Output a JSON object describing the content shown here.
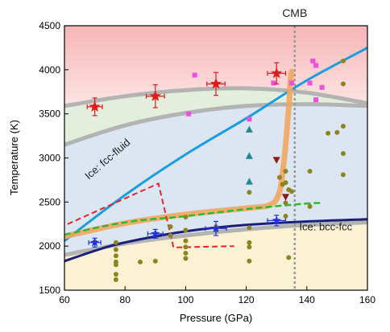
{
  "chart_data": {
    "type": "scatter",
    "xlabel": "Pressure (GPa)",
    "ylabel": "Temperature (K)",
    "xlim": [
      60,
      160
    ],
    "ylim": [
      1500,
      4500
    ],
    "xticks": [
      60,
      80,
      100,
      120,
      140,
      160
    ],
    "yticks": [
      1500,
      2000,
      2500,
      3000,
      3500,
      4000,
      4500
    ],
    "grid": false,
    "annotations": {
      "cmb": {
        "text": "CMB",
        "x": 136
      },
      "fcc_fluid": {
        "text": "Ice: fcc-fluid",
        "x": 68,
        "y": 2750
      },
      "bcc_fcc": {
        "text": "Ice: bcc-fcc",
        "x": 137.5,
        "y": 2180
      }
    },
    "bands": [
      {
        "name": "fluid",
        "color": "#f7b5b5",
        "top_color": "#f7b5b5",
        "bottom_color": "#fce4e4"
      },
      {
        "name": "green",
        "color": "#e3eedd"
      },
      {
        "name": "blue",
        "color": "#dce6f3"
      },
      {
        "name": "yellow",
        "color": "#fbf1d3"
      }
    ],
    "boundaries": [
      {
        "name": "upper-gray",
        "color": "#b3b3b3",
        "x": [
          60,
          80,
          100,
          120,
          140,
          160
        ],
        "y": [
          3590,
          3700,
          3770,
          3790,
          3740,
          3620
        ]
      },
      {
        "name": "lower-gray",
        "color": "#b3b3b3",
        "x": [
          60,
          80,
          100,
          120,
          140,
          160
        ],
        "y": [
          3150,
          3370,
          3510,
          3590,
          3610,
          3590
        ]
      },
      {
        "name": "gray-low",
        "color": "#b3b3b3",
        "x": [
          60,
          80,
          100,
          120,
          140,
          160
        ],
        "y": [
          1900,
          2030,
          2120,
          2190,
          2240,
          2270
        ]
      },
      {
        "name": "navy",
        "color": "#1b1f7a",
        "x": [
          60,
          75,
          90,
          105,
          120,
          140,
          160
        ],
        "y": [
          1830,
          2000,
          2110,
          2190,
          2240,
          2280,
          2305
        ]
      }
    ],
    "series": [
      {
        "style": "solid-blue",
        "color": "#1a9ce0",
        "x": [
          60,
          80,
          100,
          120,
          140,
          160
        ],
        "y": [
          2060,
          2580,
          3040,
          3450,
          3880,
          4250
        ]
      },
      {
        "style": "orange-band",
        "color": "#f2a65e",
        "x": [
          60,
          80,
          100,
          120,
          128,
          131,
          132.5,
          133.5,
          134.2,
          134.6,
          135
        ],
        "y": [
          2110,
          2260,
          2360,
          2430,
          2470,
          2620,
          2980,
          3350,
          3650,
          3880,
          3980
        ]
      },
      {
        "style": "dashed-green",
        "color": "#2ebb2e",
        "x": [
          60,
          80,
          100,
          120,
          139,
          145
        ],
        "y": [
          2130,
          2270,
          2340,
          2420,
          2480,
          2490
        ]
      },
      {
        "style": "dashed-red",
        "color": "#e8262a",
        "x": [
          61,
          91,
          96,
          116
        ],
        "y": [
          2250,
          2710,
          1985,
          2000
        ]
      }
    ],
    "stars_red": [
      {
        "x": 70,
        "y": 3580,
        "xerr": 2.5,
        "yerr": 100
      },
      {
        "x": 90,
        "y": 3700,
        "xerr": 3,
        "yerr": 130
      },
      {
        "x": 110,
        "y": 3840,
        "xerr": 3,
        "yerr": 130
      },
      {
        "x": 130,
        "y": 3960,
        "xerr": 3,
        "yerr": 120
      }
    ],
    "stars_blue": [
      {
        "x": 70,
        "y": 2040,
        "xerr": 2,
        "yerr": 50
      },
      {
        "x": 90,
        "y": 2140,
        "xerr": 2.5,
        "yerr": 50
      },
      {
        "x": 110,
        "y": 2200,
        "xerr": 3.5,
        "yerr": 80
      },
      {
        "x": 130,
        "y": 2290,
        "xerr": 3,
        "yerr": 60
      }
    ],
    "squares_magenta": [
      {
        "x": 103,
        "y": 3940
      },
      {
        "x": 101,
        "y": 3500
      },
      {
        "x": 121,
        "y": 3440
      },
      {
        "x": 129,
        "y": 3850
      },
      {
        "x": 135,
        "y": 3850
      },
      {
        "x": 141,
        "y": 3850
      },
      {
        "x": 142,
        "y": 4100
      },
      {
        "x": 143,
        "y": 4050
      },
      {
        "x": 143,
        "y": 3660
      },
      {
        "x": 145,
        "y": 3800
      }
    ],
    "triangles_teal": [
      {
        "x": 121,
        "y": 3320
      },
      {
        "x": 121,
        "y": 3020
      },
      {
        "x": 121,
        "y": 2730
      }
    ],
    "triangles_darkred": [
      {
        "x": 130,
        "y": 2980
      },
      {
        "x": 133,
        "y": 2560
      }
    ],
    "dots_olive": [
      {
        "x": 70,
        "y": 2050
      },
      {
        "x": 77,
        "y": 2040
      },
      {
        "x": 77,
        "y": 1960
      },
      {
        "x": 77,
        "y": 1890
      },
      {
        "x": 77,
        "y": 1820
      },
      {
        "x": 77,
        "y": 1790
      },
      {
        "x": 77,
        "y": 1680
      },
      {
        "x": 77,
        "y": 1620
      },
      {
        "x": 85,
        "y": 1820
      },
      {
        "x": 90,
        "y": 1830
      },
      {
        "x": 95,
        "y": 2220
      },
      {
        "x": 95,
        "y": 2120
      },
      {
        "x": 100,
        "y": 2330
      },
      {
        "x": 100,
        "y": 2180
      },
      {
        "x": 100,
        "y": 2060
      },
      {
        "x": 100,
        "y": 1990
      },
      {
        "x": 100,
        "y": 1920
      },
      {
        "x": 100,
        "y": 1860
      },
      {
        "x": 110,
        "y": 2220
      },
      {
        "x": 110,
        "y": 2180
      },
      {
        "x": 121,
        "y": 2610
      },
      {
        "x": 121,
        "y": 2210
      },
      {
        "x": 121,
        "y": 2040
      },
      {
        "x": 121,
        "y": 1990
      },
      {
        "x": 121,
        "y": 1830
      },
      {
        "x": 131,
        "y": 2780
      },
      {
        "x": 132,
        "y": 2700
      },
      {
        "x": 133,
        "y": 2850
      },
      {
        "x": 133,
        "y": 2720
      },
      {
        "x": 133,
        "y": 2490
      },
      {
        "x": 133,
        "y": 2340
      },
      {
        "x": 134,
        "y": 2640
      },
      {
        "x": 134,
        "y": 1870
      },
      {
        "x": 135,
        "y": 2620
      },
      {
        "x": 141,
        "y": 2450
      },
      {
        "x": 141,
        "y": 2850
      },
      {
        "x": 147,
        "y": 3280
      },
      {
        "x": 150,
        "y": 3290
      },
      {
        "x": 152,
        "y": 4100
      },
      {
        "x": 152,
        "y": 3840
      },
      {
        "x": 152,
        "y": 3360
      },
      {
        "x": 152,
        "y": 3050
      },
      {
        "x": 152,
        "y": 2810
      }
    ]
  }
}
